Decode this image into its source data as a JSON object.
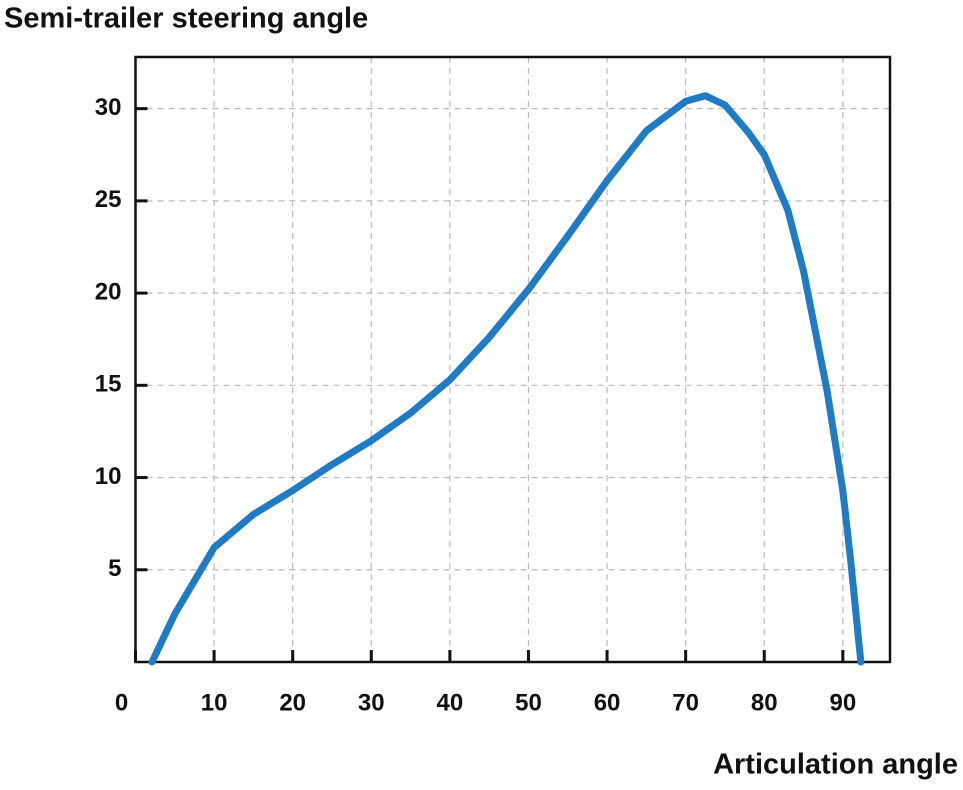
{
  "chart_data": {
    "type": "line",
    "title": "Semi-trailer steering angle",
    "x_label": "Articulation angle",
    "series": [
      {
        "name": "Semi-trailer steering angle",
        "color": "#1f7bc4",
        "x": [
          2.1,
          5,
          10,
          15,
          20,
          25,
          30,
          35,
          40,
          45,
          50,
          55,
          60,
          65,
          70,
          72.5,
          75,
          78,
          80,
          83,
          85,
          88,
          90,
          91,
          92,
          92.3
        ],
        "values": [
          0,
          2.6,
          6.2,
          8.0,
          9.3,
          10.7,
          12.0,
          13.5,
          15.3,
          17.6,
          20.2,
          23.1,
          26.1,
          28.8,
          30.4,
          30.7,
          30.2,
          28.7,
          27.5,
          24.5,
          21.2,
          14.7,
          9.3,
          5.5,
          1.2,
          0
        ]
      }
    ],
    "xlim": [
      0,
      96
    ],
    "ylim": [
      0,
      32.8
    ],
    "xticks": [
      0,
      10,
      20,
      30,
      40,
      50,
      60,
      70,
      80,
      90
    ],
    "yticks": [
      5,
      10,
      15,
      20,
      25,
      30
    ],
    "grid": true
  }
}
